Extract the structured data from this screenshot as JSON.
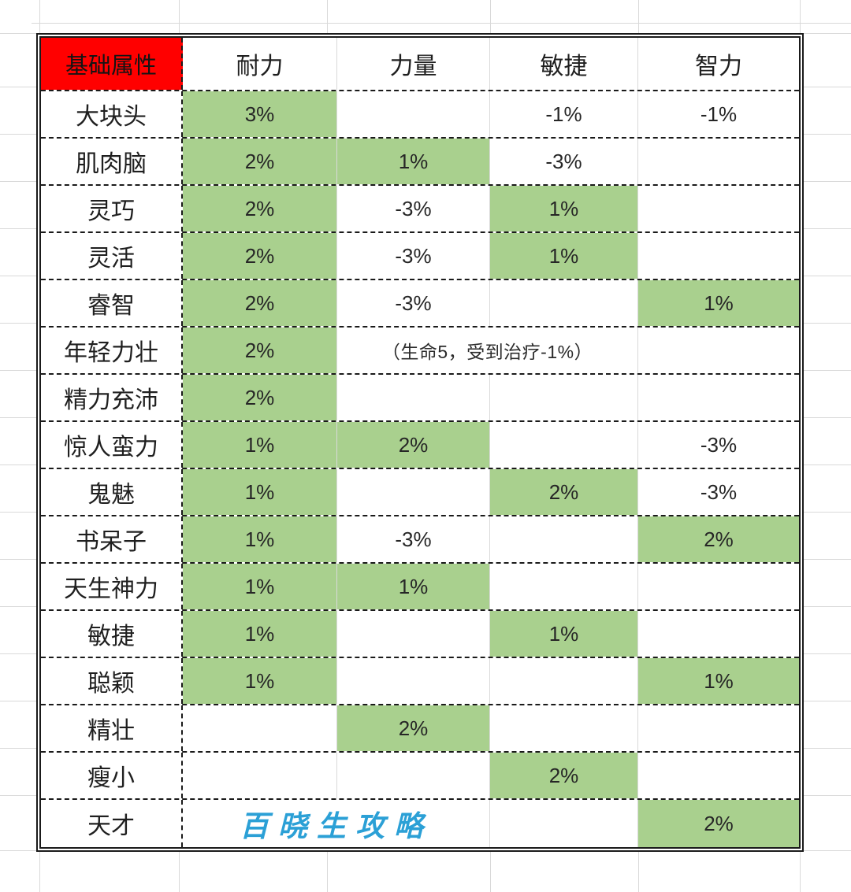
{
  "sheet": {
    "corner_header": "基础属性",
    "column_headers": [
      "耐力",
      "力量",
      "敏捷",
      "智力"
    ],
    "rows": [
      {
        "name": "大块头",
        "cells": [
          {
            "v": "3%",
            "green": true
          },
          {
            "v": ""
          },
          {
            "v": "-1%"
          },
          {
            "v": "-1%"
          }
        ]
      },
      {
        "name": "肌肉脑",
        "cells": [
          {
            "v": "2%",
            "green": true
          },
          {
            "v": "1%",
            "green": true
          },
          {
            "v": "-3%"
          },
          {
            "v": ""
          }
        ]
      },
      {
        "name": "灵巧",
        "cells": [
          {
            "v": "2%",
            "green": true
          },
          {
            "v": "-3%"
          },
          {
            "v": "1%",
            "green": true
          },
          {
            "v": ""
          }
        ]
      },
      {
        "name": "灵活",
        "cells": [
          {
            "v": "2%",
            "green": true
          },
          {
            "v": "-3%"
          },
          {
            "v": "1%",
            "green": true
          },
          {
            "v": ""
          }
        ]
      },
      {
        "name": "睿智",
        "cells": [
          {
            "v": "2%",
            "green": true
          },
          {
            "v": "-3%"
          },
          {
            "v": ""
          },
          {
            "v": "1%",
            "green": true
          }
        ]
      },
      {
        "name": "年轻力壮",
        "cells": [
          {
            "v": "2%",
            "green": true
          },
          {
            "v": "（生命5，受到治疗-1%）",
            "span": 2,
            "kind": "note"
          },
          {
            "v": ""
          }
        ]
      },
      {
        "name": "精力充沛",
        "cells": [
          {
            "v": "2%",
            "green": true
          },
          {
            "v": ""
          },
          {
            "v": ""
          },
          {
            "v": ""
          }
        ]
      },
      {
        "name": "惊人蛮力",
        "cells": [
          {
            "v": "1%",
            "green": true
          },
          {
            "v": "2%",
            "green": true
          },
          {
            "v": ""
          },
          {
            "v": "-3%"
          }
        ]
      },
      {
        "name": "鬼魅",
        "cells": [
          {
            "v": "1%",
            "green": true
          },
          {
            "v": ""
          },
          {
            "v": "2%",
            "green": true
          },
          {
            "v": "-3%"
          }
        ]
      },
      {
        "name": "书呆子",
        "cells": [
          {
            "v": "1%",
            "green": true
          },
          {
            "v": "-3%"
          },
          {
            "v": ""
          },
          {
            "v": "2%",
            "green": true
          }
        ]
      },
      {
        "name": "天生神力",
        "cells": [
          {
            "v": "1%",
            "green": true
          },
          {
            "v": "1%",
            "green": true
          },
          {
            "v": ""
          },
          {
            "v": ""
          }
        ]
      },
      {
        "name": "敏捷",
        "cells": [
          {
            "v": "1%",
            "green": true
          },
          {
            "v": ""
          },
          {
            "v": "1%",
            "green": true
          },
          {
            "v": ""
          }
        ]
      },
      {
        "name": "聪颖",
        "cells": [
          {
            "v": "1%",
            "green": true
          },
          {
            "v": ""
          },
          {
            "v": ""
          },
          {
            "v": "1%",
            "green": true
          }
        ]
      },
      {
        "name": "精壮",
        "cells": [
          {
            "v": ""
          },
          {
            "v": "2%",
            "green": true
          },
          {
            "v": ""
          },
          {
            "v": ""
          }
        ]
      },
      {
        "name": "瘦小",
        "cells": [
          {
            "v": ""
          },
          {
            "v": ""
          },
          {
            "v": "2%",
            "green": true
          },
          {
            "v": ""
          }
        ]
      },
      {
        "name": "天才",
        "cells": [
          {
            "v": "百晓生攻略",
            "span": 2,
            "kind": "watermark"
          },
          {
            "v": ""
          },
          {
            "v": "2%",
            "green": true
          }
        ]
      }
    ]
  },
  "watermark_text": "百晓生攻略",
  "colors": {
    "green_fill": "#a9d08e",
    "corner_fill": "#ff0000",
    "watermark": "#2ba0d6",
    "gridline": "#d9d9d9",
    "border": "#1a1a1a",
    "text": "#262626"
  }
}
